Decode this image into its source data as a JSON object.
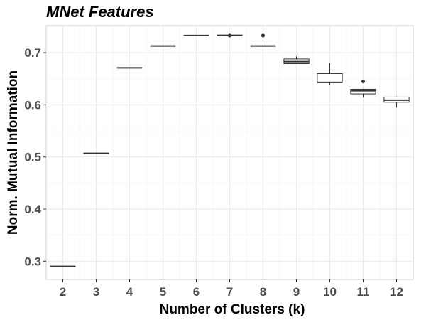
{
  "chart_data": {
    "type": "box",
    "title": "MNet Features",
    "xlabel": "Number of Clusters (k)",
    "ylabel": "Norm. Mutual Information",
    "categories": [
      "2",
      "3",
      "4",
      "5",
      "6",
      "7",
      "8",
      "9",
      "10",
      "11",
      "12"
    ],
    "ylim": [
      0.265,
      0.752
    ],
    "yticks": [
      0.3,
      0.4,
      0.5,
      0.6,
      0.7
    ],
    "ytick_labels": [
      "0.3",
      "0.4",
      "0.5",
      "0.6",
      "0.7"
    ],
    "grid": true,
    "boxes": [
      {
        "category": "2",
        "min": 0.29,
        "q1": 0.29,
        "median": 0.29,
        "q3": 0.29,
        "max": 0.29,
        "outliers": []
      },
      {
        "category": "3",
        "min": 0.507,
        "q1": 0.507,
        "median": 0.507,
        "q3": 0.507,
        "max": 0.507,
        "outliers": []
      },
      {
        "category": "4",
        "min": 0.671,
        "q1": 0.671,
        "median": 0.671,
        "q3": 0.671,
        "max": 0.671,
        "outliers": []
      },
      {
        "category": "5",
        "min": 0.713,
        "q1": 0.713,
        "median": 0.713,
        "q3": 0.713,
        "max": 0.713,
        "outliers": []
      },
      {
        "category": "6",
        "min": 0.733,
        "q1": 0.733,
        "median": 0.733,
        "q3": 0.733,
        "max": 0.733,
        "outliers": []
      },
      {
        "category": "7",
        "min": 0.733,
        "q1": 0.733,
        "median": 0.733,
        "q3": 0.734,
        "max": 0.734,
        "outliers": [
          0.733
        ]
      },
      {
        "category": "8",
        "min": 0.713,
        "q1": 0.713,
        "median": 0.713,
        "q3": 0.713,
        "max": 0.716,
        "outliers": [
          0.733
        ]
      },
      {
        "category": "9",
        "min": 0.679,
        "q1": 0.679,
        "median": 0.683,
        "q3": 0.688,
        "max": 0.693,
        "outliers": []
      },
      {
        "category": "10",
        "min": 0.638,
        "q1": 0.643,
        "median": 0.643,
        "q3": 0.66,
        "max": 0.68,
        "outliers": []
      },
      {
        "category": "11",
        "min": 0.614,
        "q1": 0.621,
        "median": 0.627,
        "q3": 0.63,
        "max": 0.631,
        "outliers": [
          0.645
        ]
      },
      {
        "category": "12",
        "min": 0.595,
        "q1": 0.605,
        "median": 0.609,
        "q3": 0.615,
        "max": 0.616,
        "outliers": []
      }
    ]
  }
}
